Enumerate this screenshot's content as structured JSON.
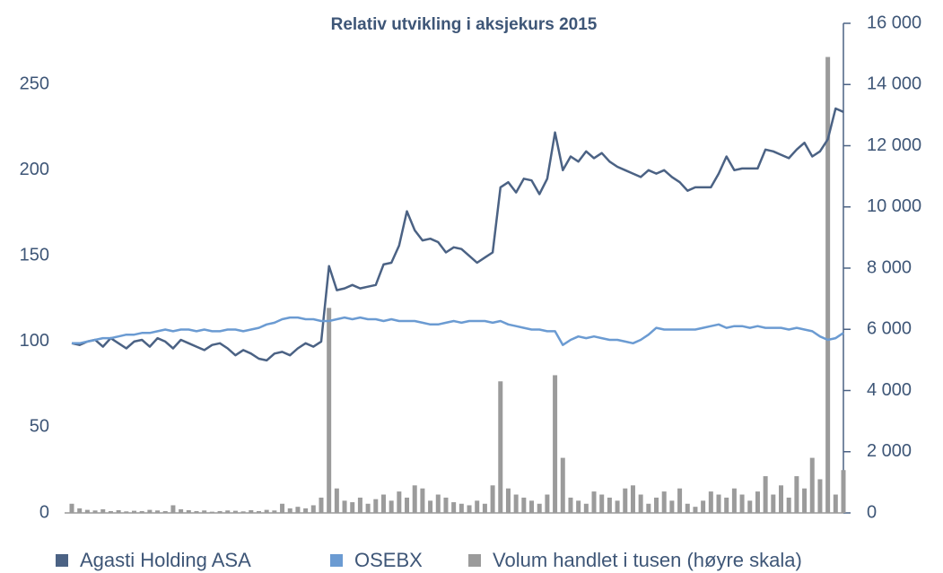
{
  "chart_data": {
    "type": "line_bar",
    "title": "Relativ utvikling i aksjekurs 2015",
    "categories": [
      null,
      null,
      null,
      null,
      null,
      null,
      null,
      null,
      null,
      null,
      null,
      null,
      null,
      null,
      null,
      null,
      null,
      null,
      null,
      null,
      null,
      null,
      null,
      null,
      null,
      null,
      null,
      null,
      null,
      null,
      null,
      null,
      null,
      null,
      null,
      null,
      null,
      null,
      null,
      null,
      null,
      null,
      null,
      null,
      null,
      null,
      null,
      null,
      null,
      null,
      null,
      null,
      null,
      null,
      null,
      null,
      null,
      null,
      null,
      null,
      null,
      null,
      null,
      null,
      null,
      null,
      null,
      null,
      null,
      null,
      null,
      null,
      null,
      null,
      null,
      null,
      null,
      null,
      null,
      null,
      null,
      null,
      null,
      null,
      null,
      null,
      null,
      null,
      null,
      null,
      null,
      null,
      null,
      null,
      null,
      null,
      null,
      null,
      null,
      null
    ],
    "ylim": [
      0,
      285.7
    ],
    "yticks": [
      0,
      50,
      100,
      150,
      200,
      250
    ],
    "y2lim": [
      0,
      16000
    ],
    "y2ticks": [
      0,
      {
        "value": 2000,
        "label": "2 000"
      },
      {
        "value": 4000,
        "label": "4 000"
      },
      {
        "value": 6000,
        "label": "6 000"
      },
      {
        "value": 8000,
        "label": "8 000"
      },
      {
        "value": 10000,
        "label": "10 000"
      },
      {
        "value": 12000,
        "label": "12 000"
      },
      {
        "value": 14000,
        "label": "14 000"
      },
      {
        "value": 16000,
        "label": "16 000"
      }
    ],
    "series": [
      {
        "name": "Agasti Holding ASA",
        "color": "#4b6284",
        "kind": "line",
        "values": [
          99,
          98,
          100,
          101,
          97,
          102,
          99,
          96,
          100,
          101,
          97,
          102,
          100,
          96,
          101,
          99,
          97,
          95,
          98,
          99,
          96,
          92,
          95,
          93,
          90,
          89,
          93,
          94,
          92,
          96,
          99,
          97,
          100,
          144,
          130,
          131,
          133,
          131,
          132,
          133,
          145,
          146,
          156,
          176,
          165,
          159,
          160,
          158,
          152,
          155,
          154,
          150,
          146,
          149,
          152,
          190,
          193,
          187,
          195,
          194,
          186,
          195,
          222,
          200,
          208,
          205,
          211,
          207,
          210,
          205,
          202,
          200,
          198,
          196,
          200,
          198,
          200,
          196,
          193,
          188,
          190,
          190,
          190,
          198,
          208,
          200,
          201,
          201,
          201,
          212,
          211,
          209,
          207,
          212,
          216,
          208,
          211,
          218,
          236,
          234
        ]
      },
      {
        "name": "OSEBX",
        "color": "#6b9bd2",
        "kind": "line",
        "values": [
          99,
          99,
          100,
          101,
          102,
          102,
          103,
          104,
          104,
          105,
          105,
          106,
          107,
          106,
          107,
          107,
          106,
          107,
          106,
          106,
          107,
          107,
          106,
          107,
          108,
          110,
          111,
          113,
          114,
          114,
          113,
          113,
          112,
          112,
          113,
          114,
          113,
          114,
          113,
          113,
          112,
          113,
          112,
          112,
          112,
          111,
          110,
          110,
          111,
          112,
          111,
          112,
          112,
          112,
          111,
          112,
          110,
          109,
          108,
          107,
          107,
          106,
          106,
          98,
          101,
          103,
          102,
          103,
          102,
          101,
          101,
          100,
          99,
          101,
          104,
          108,
          107,
          107,
          107,
          107,
          107,
          108,
          109,
          110,
          108,
          109,
          109,
          108,
          109,
          108,
          108,
          108,
          107,
          108,
          107,
          106,
          103,
          101,
          102,
          105
        ]
      },
      {
        "name": "Volum handlet i tusen (høyre skala)",
        "color": "#9b9b9b",
        "kind": "bar",
        "axis": "y2",
        "values": [
          300,
          150,
          100,
          80,
          120,
          60,
          90,
          50,
          70,
          60,
          100,
          80,
          60,
          250,
          120,
          90,
          60,
          80,
          40,
          60,
          80,
          70,
          50,
          90,
          60,
          100,
          80,
          300,
          150,
          200,
          150,
          250,
          500,
          6700,
          800,
          400,
          350,
          500,
          300,
          450,
          600,
          400,
          700,
          500,
          900,
          800,
          400,
          600,
          500,
          350,
          300,
          250,
          400,
          300,
          900,
          4300,
          800,
          600,
          500,
          400,
          300,
          600,
          4500,
          1800,
          500,
          400,
          300,
          700,
          600,
          500,
          400,
          800,
          900,
          600,
          300,
          500,
          700,
          400,
          800,
          300,
          200,
          400,
          700,
          600,
          500,
          800,
          600,
          400,
          700,
          1200,
          600,
          900,
          500,
          1200,
          800,
          1800,
          1100,
          14900,
          600,
          1400
        ]
      }
    ]
  }
}
